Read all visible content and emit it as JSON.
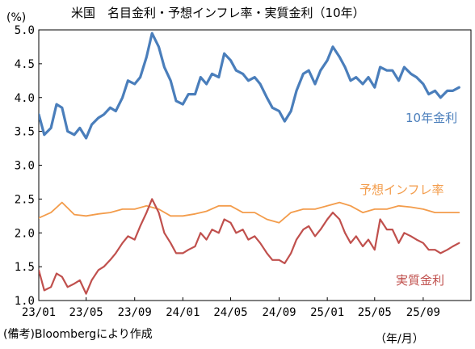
{
  "chart_data": {
    "type": "line",
    "title": "米国　名目金利・予想インフレ率・実質金利（10年）",
    "y_unit": "(%)",
    "ylim": [
      1.0,
      5.0
    ],
    "yticks": [
      "5.0",
      "4.5",
      "4.0",
      "3.5",
      "3.0",
      "2.5",
      "2.0",
      "1.5",
      "1.0"
    ],
    "xlim": [
      "2023-01",
      "2025-12"
    ],
    "x_ticks": [
      {
        "date": "2023-01",
        "label": "23/01"
      },
      {
        "date": "2023-05",
        "label": "23/05"
      },
      {
        "date": "2023-09",
        "label": "23/09"
      },
      {
        "date": "2024-01",
        "label": "24/01"
      },
      {
        "date": "2024-05",
        "label": "24/05"
      },
      {
        "date": "2024-09",
        "label": "24/09"
      },
      {
        "date": "2025-01",
        "label": "25/01"
      },
      {
        "date": "2025-05",
        "label": "25/05"
      },
      {
        "date": "2025-09",
        "label": "25/09"
      }
    ],
    "x_unit": "（年/月）",
    "source": "(備考)Bloombergにより作成",
    "grid": false,
    "series": [
      {
        "name": "10年金利",
        "color": "#4a7ebb",
        "x": [
          "2023-01-01",
          "2023-01-15",
          "2023-02-01",
          "2023-02-15",
          "2023-03-01",
          "2023-03-15",
          "2023-04-01",
          "2023-04-15",
          "2023-05-01",
          "2023-05-15",
          "2023-06-01",
          "2023-06-15",
          "2023-07-01",
          "2023-07-15",
          "2023-08-01",
          "2023-08-15",
          "2023-09-01",
          "2023-09-15",
          "2023-10-01",
          "2023-10-15",
          "2023-11-01",
          "2023-11-15",
          "2023-12-01",
          "2023-12-15",
          "2024-01-01",
          "2024-01-15",
          "2024-02-01",
          "2024-02-15",
          "2024-03-01",
          "2024-03-15",
          "2024-04-01",
          "2024-04-15",
          "2024-05-01",
          "2024-05-15",
          "2024-06-01",
          "2024-06-15",
          "2024-07-01",
          "2024-07-15",
          "2024-08-01",
          "2024-08-15",
          "2024-09-01",
          "2024-09-15",
          "2024-10-01",
          "2024-10-15",
          "2024-11-01",
          "2024-11-15",
          "2024-12-01",
          "2024-12-15",
          "2025-01-01",
          "2025-01-15",
          "2025-02-01",
          "2025-02-15",
          "2025-03-01",
          "2025-03-15",
          "2025-04-01",
          "2025-04-15",
          "2025-05-01",
          "2025-05-15",
          "2025-06-01",
          "2025-06-15",
          "2025-07-01",
          "2025-07-15",
          "2025-08-01",
          "2025-08-15",
          "2025-09-01",
          "2025-09-15",
          "2025-10-01",
          "2025-10-15",
          "2025-11-01",
          "2025-11-15",
          "2025-12-01"
        ],
        "values": [
          3.75,
          3.45,
          3.55,
          3.9,
          3.85,
          3.5,
          3.45,
          3.55,
          3.4,
          3.6,
          3.7,
          3.75,
          3.85,
          3.8,
          4.0,
          4.25,
          4.2,
          4.3,
          4.6,
          4.95,
          4.75,
          4.45,
          4.25,
          3.95,
          3.9,
          4.05,
          4.05,
          4.3,
          4.2,
          4.35,
          4.3,
          4.65,
          4.55,
          4.4,
          4.35,
          4.25,
          4.3,
          4.2,
          4.0,
          3.85,
          3.8,
          3.65,
          3.8,
          4.1,
          4.35,
          4.4,
          4.2,
          4.4,
          4.55,
          4.75,
          4.6,
          4.45,
          4.25,
          4.3,
          4.2,
          4.3,
          4.15,
          4.45,
          4.4,
          4.4,
          4.25,
          4.45,
          4.35,
          4.3,
          4.2,
          4.05,
          4.1,
          4.0,
          4.1,
          4.1,
          4.15
        ]
      },
      {
        "name": "予想インフレ率",
        "color": "#f39c4b",
        "x": [
          "2023-01-01",
          "2023-02-01",
          "2023-03-01",
          "2023-04-01",
          "2023-05-01",
          "2023-06-01",
          "2023-07-01",
          "2023-08-01",
          "2023-09-01",
          "2023-10-01",
          "2023-11-01",
          "2023-12-01",
          "2024-01-01",
          "2024-02-01",
          "2024-03-01",
          "2024-04-01",
          "2024-05-01",
          "2024-06-01",
          "2024-07-01",
          "2024-08-01",
          "2024-09-01",
          "2024-10-01",
          "2024-11-01",
          "2024-12-01",
          "2025-01-01",
          "2025-02-01",
          "2025-03-01",
          "2025-04-01",
          "2025-05-01",
          "2025-06-01",
          "2025-07-01",
          "2025-08-01",
          "2025-09-01",
          "2025-10-01",
          "2025-11-01",
          "2025-12-01"
        ],
        "values": [
          2.22,
          2.3,
          2.45,
          2.27,
          2.25,
          2.28,
          2.3,
          2.35,
          2.35,
          2.4,
          2.35,
          2.25,
          2.25,
          2.28,
          2.32,
          2.4,
          2.4,
          2.3,
          2.3,
          2.2,
          2.15,
          2.3,
          2.35,
          2.35,
          2.4,
          2.45,
          2.4,
          2.3,
          2.35,
          2.35,
          2.4,
          2.38,
          2.35,
          2.3,
          2.3,
          2.3
        ]
      },
      {
        "name": "実質金利",
        "color": "#c0504d",
        "x": [
          "2023-01-01",
          "2023-01-15",
          "2023-02-01",
          "2023-02-15",
          "2023-03-01",
          "2023-03-15",
          "2023-04-01",
          "2023-04-15",
          "2023-05-01",
          "2023-05-15",
          "2023-06-01",
          "2023-06-15",
          "2023-07-01",
          "2023-07-15",
          "2023-08-01",
          "2023-08-15",
          "2023-09-01",
          "2023-09-15",
          "2023-10-01",
          "2023-10-15",
          "2023-11-01",
          "2023-11-15",
          "2023-12-01",
          "2023-12-15",
          "2024-01-01",
          "2024-01-15",
          "2024-02-01",
          "2024-02-15",
          "2024-03-01",
          "2024-03-15",
          "2024-04-01",
          "2024-04-15",
          "2024-05-01",
          "2024-05-15",
          "2024-06-01",
          "2024-06-15",
          "2024-07-01",
          "2024-07-15",
          "2024-08-01",
          "2024-08-15",
          "2024-09-01",
          "2024-09-15",
          "2024-10-01",
          "2024-10-15",
          "2024-11-01",
          "2024-11-15",
          "2024-12-01",
          "2024-12-15",
          "2025-01-01",
          "2025-01-15",
          "2025-02-01",
          "2025-02-15",
          "2025-03-01",
          "2025-03-15",
          "2025-04-01",
          "2025-04-15",
          "2025-05-01",
          "2025-05-15",
          "2025-06-01",
          "2025-06-15",
          "2025-07-01",
          "2025-07-15",
          "2025-08-01",
          "2025-08-15",
          "2025-09-01",
          "2025-09-15",
          "2025-10-01",
          "2025-10-15",
          "2025-11-01",
          "2025-11-15",
          "2025-12-01"
        ],
        "values": [
          1.45,
          1.15,
          1.2,
          1.4,
          1.35,
          1.2,
          1.25,
          1.3,
          1.1,
          1.3,
          1.45,
          1.5,
          1.6,
          1.7,
          1.85,
          1.95,
          1.9,
          2.1,
          2.3,
          2.5,
          2.3,
          2.0,
          1.85,
          1.7,
          1.7,
          1.75,
          1.8,
          2.0,
          1.9,
          2.05,
          2.0,
          2.2,
          2.15,
          2.0,
          2.05,
          1.9,
          1.95,
          1.85,
          1.7,
          1.6,
          1.6,
          1.55,
          1.7,
          1.9,
          2.05,
          2.1,
          1.95,
          2.05,
          2.2,
          2.3,
          2.2,
          2.0,
          1.85,
          1.95,
          1.8,
          1.9,
          1.75,
          2.2,
          2.05,
          2.05,
          1.85,
          2.0,
          1.95,
          1.9,
          1.85,
          1.75,
          1.75,
          1.7,
          1.75,
          1.8,
          1.85
        ]
      }
    ],
    "series_labels": [
      {
        "series": 0,
        "text": "10年金利"
      },
      {
        "series": 1,
        "text": "予想インフレ率"
      },
      {
        "series": 2,
        "text": "実質金利"
      }
    ]
  }
}
